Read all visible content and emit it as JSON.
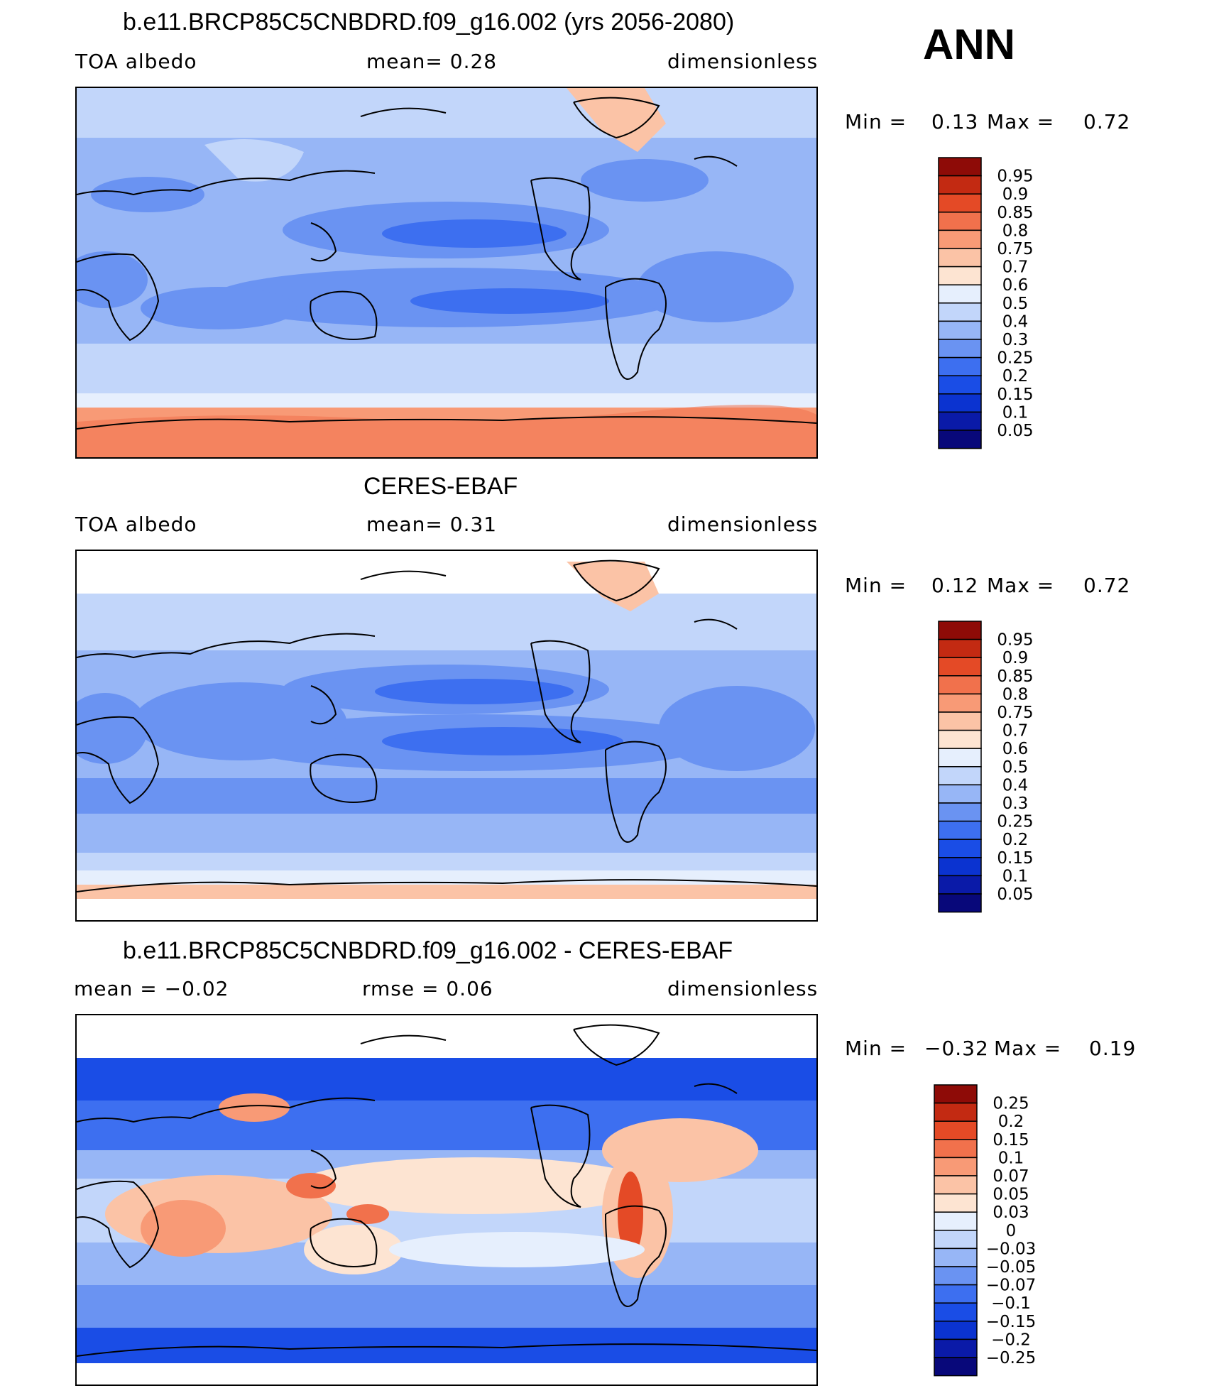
{
  "season": "ANN",
  "colors": {
    "model_scale": [
      "#08087a",
      "#0a1aa8",
      "#0b33d0",
      "#1a4de6",
      "#3d6ff0",
      "#6a93f2",
      "#97b6f6",
      "#c2d6fa",
      "#e6effd",
      "#fde4d2",
      "#fbc3a6",
      "#f89a76",
      "#f1714c",
      "#e44a26",
      "#c32a12",
      "#8e0b07"
    ],
    "diff_scale": [
      "#08087a",
      "#0a1aa8",
      "#0b33d0",
      "#1a4de6",
      "#3d6ff0",
      "#6a93f2",
      "#97b6f6",
      "#c2d6fa",
      "#e6effd",
      "#fde4d2",
      "#fbc3a6",
      "#f89a76",
      "#f1714c",
      "#e44a26",
      "#c32a12",
      "#8e0b07"
    ]
  },
  "panels": [
    {
      "id": "model",
      "title": "b.e11.BRCP85C5CNBDRD.f09_g16.002 (yrs 2056-2080)",
      "left_label": "TOA  albedo",
      "center_label": "mean=    0.28",
      "right_label": "dimensionless",
      "min_label": "Min  =",
      "min_value": "0.13",
      "max_label": "Max  =",
      "max_value": "0.72",
      "colorbar_labels": [
        "0.95",
        "0.9",
        "0.85",
        "0.8",
        "0.75",
        "0.7",
        "0.6",
        "0.5",
        "0.4",
        "0.3",
        "0.25",
        "0.2",
        "0.15",
        "0.1",
        "0.05"
      ]
    },
    {
      "id": "obs",
      "title": "CERES-EBAF",
      "left_label": "TOA  albedo",
      "center_label": "mean=    0.31",
      "right_label": "dimensionless",
      "min_label": "Min  =",
      "min_value": "0.12",
      "max_label": "Max  =",
      "max_value": "0.72",
      "colorbar_labels": [
        "0.95",
        "0.9",
        "0.85",
        "0.8",
        "0.75",
        "0.7",
        "0.6",
        "0.5",
        "0.4",
        "0.3",
        "0.25",
        "0.2",
        "0.15",
        "0.1",
        "0.05"
      ]
    },
    {
      "id": "diff",
      "title": "b.e11.BRCP85C5CNBDRD.f09_g16.002 - CERES-EBAF",
      "left_label": "mean  =   −0.02",
      "center_label": "rmse  =    0.06",
      "right_label": "dimensionless",
      "min_label": "Min  =",
      "min_value": "−0.32",
      "max_label": "Max  =",
      "max_value": "0.19",
      "colorbar_labels": [
        "0.25",
        "0.2",
        "0.15",
        "0.1",
        "0.07",
        "0.05",
        "0.03",
        "0",
        "−0.03",
        "−0.05",
        "−0.07",
        "−0.1",
        "−0.15",
        "−0.2",
        "−0.25"
      ]
    }
  ]
}
